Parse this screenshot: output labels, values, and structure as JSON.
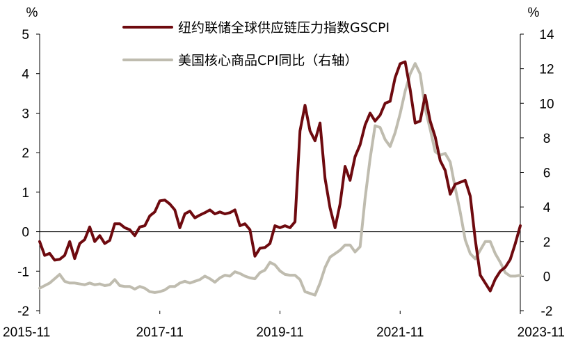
{
  "chart_data": {
    "type": "line",
    "title": "",
    "xlabel": "",
    "left_axis": {
      "unit": "%",
      "ylim": [
        -2,
        5
      ],
      "ticks": [
        -2,
        -1,
        0,
        1,
        2,
        3,
        4,
        5
      ]
    },
    "right_axis": {
      "unit": "%",
      "ylim": [
        -2,
        14
      ],
      "ticks": [
        -2,
        0,
        2,
        4,
        6,
        8,
        10,
        12,
        14
      ]
    },
    "x_ticks": [
      "2015-11",
      "2017-11",
      "2019-11",
      "2021-11",
      "2023-11"
    ],
    "grid": false,
    "legend_position": "top-center",
    "series": [
      {
        "name": "纽约联储全球供应链压力指数GSCPI",
        "axis": "left",
        "color": "#6e0a0f",
        "points": [
          [
            "2015-11",
            -0.25
          ],
          [
            "2015-12",
            -0.6
          ],
          [
            "2016-01",
            -0.55
          ],
          [
            "2016-02",
            -0.72
          ],
          [
            "2016-03",
            -0.7
          ],
          [
            "2016-04",
            -0.6
          ],
          [
            "2016-05",
            -0.25
          ],
          [
            "2016-06",
            -0.68
          ],
          [
            "2016-07",
            -0.3
          ],
          [
            "2016-08",
            -0.2
          ],
          [
            "2016-09",
            0.12
          ],
          [
            "2016-10",
            -0.25
          ],
          [
            "2016-11",
            -0.1
          ],
          [
            "2016-12",
            -0.3
          ],
          [
            "2017-01",
            -0.22
          ],
          [
            "2017-02",
            0.2
          ],
          [
            "2017-03",
            0.2
          ],
          [
            "2017-04",
            0.1
          ],
          [
            "2017-05",
            0.05
          ],
          [
            "2017-06",
            -0.1
          ],
          [
            "2017-07",
            0.12
          ],
          [
            "2017-08",
            0.15
          ],
          [
            "2017-09",
            0.4
          ],
          [
            "2017-10",
            0.5
          ],
          [
            "2017-11",
            0.78
          ],
          [
            "2017-12",
            0.8
          ],
          [
            "2018-01",
            0.7
          ],
          [
            "2018-02",
            0.55
          ],
          [
            "2018-03",
            0.1
          ],
          [
            "2018-04",
            0.45
          ],
          [
            "2018-05",
            0.52
          ],
          [
            "2018-06",
            0.35
          ],
          [
            "2018-07",
            0.42
          ],
          [
            "2018-08",
            0.48
          ],
          [
            "2018-09",
            0.55
          ],
          [
            "2018-10",
            0.45
          ],
          [
            "2018-11",
            0.5
          ],
          [
            "2018-12",
            0.45
          ],
          [
            "2019-01",
            0.48
          ],
          [
            "2019-02",
            0.55
          ],
          [
            "2019-03",
            0.15
          ],
          [
            "2019-04",
            0.2
          ],
          [
            "2019-05",
            0.05
          ],
          [
            "2019-06",
            -0.62
          ],
          [
            "2019-07",
            -0.42
          ],
          [
            "2019-08",
            -0.4
          ],
          [
            "2019-09",
            -0.3
          ],
          [
            "2019-10",
            0.15
          ],
          [
            "2019-11",
            0.1
          ],
          [
            "2019-12",
            0.15
          ],
          [
            "2020-01",
            0.1
          ],
          [
            "2020-02",
            0.25
          ],
          [
            "2020-03",
            2.55
          ],
          [
            "2020-04",
            3.2
          ],
          [
            "2020-05",
            2.55
          ],
          [
            "2020-06",
            2.3
          ],
          [
            "2020-07",
            2.75
          ],
          [
            "2020-08",
            1.35
          ],
          [
            "2020-09",
            0.6
          ],
          [
            "2020-10",
            0.1
          ],
          [
            "2020-11",
            0.7
          ],
          [
            "2020-12",
            1.65
          ],
          [
            "2021-01",
            1.3
          ],
          [
            "2021-02",
            1.9
          ],
          [
            "2021-03",
            2.2
          ],
          [
            "2021-04",
            2.7
          ],
          [
            "2021-05",
            3.0
          ],
          [
            "2021-06",
            2.8
          ],
          [
            "2021-07",
            2.95
          ],
          [
            "2021-08",
            3.25
          ],
          [
            "2021-09",
            3.3
          ],
          [
            "2021-10",
            3.9
          ],
          [
            "2021-11",
            4.25
          ],
          [
            "2021-12",
            4.3
          ],
          [
            "2022-01",
            3.6
          ],
          [
            "2022-02",
            2.75
          ],
          [
            "2022-03",
            2.8
          ],
          [
            "2022-04",
            3.45
          ],
          [
            "2022-05",
            2.8
          ],
          [
            "2022-06",
            2.4
          ],
          [
            "2022-07",
            1.8
          ],
          [
            "2022-08",
            1.55
          ],
          [
            "2022-09",
            0.95
          ],
          [
            "2022-10",
            1.2
          ],
          [
            "2022-11",
            1.25
          ],
          [
            "2022-12",
            1.3
          ],
          [
            "2023-01",
            0.9
          ],
          [
            "2023-02",
            -0.2
          ],
          [
            "2023-03",
            -1.1
          ],
          [
            "2023-04",
            -1.3
          ],
          [
            "2023-05",
            -1.5
          ],
          [
            "2023-06",
            -1.2
          ],
          [
            "2023-07",
            -1.0
          ],
          [
            "2023-08",
            -0.9
          ],
          [
            "2023-09",
            -0.7
          ],
          [
            "2023-10",
            -0.3
          ],
          [
            "2023-11",
            0.15
          ]
        ]
      },
      {
        "name": "美国核心商品CPI同比（右轴）",
        "axis": "right",
        "color": "#bfbcaf",
        "points": [
          [
            "2015-11",
            -0.7
          ],
          [
            "2015-12",
            -0.55
          ],
          [
            "2016-01",
            -0.4
          ],
          [
            "2016-02",
            -0.15
          ],
          [
            "2016-03",
            0.1
          ],
          [
            "2016-04",
            -0.3
          ],
          [
            "2016-05",
            -0.4
          ],
          [
            "2016-06",
            -0.4
          ],
          [
            "2016-07",
            -0.45
          ],
          [
            "2016-08",
            -0.5
          ],
          [
            "2016-09",
            -0.4
          ],
          [
            "2016-10",
            -0.5
          ],
          [
            "2016-11",
            -0.45
          ],
          [
            "2016-12",
            -0.55
          ],
          [
            "2017-01",
            -0.5
          ],
          [
            "2017-02",
            -0.2
          ],
          [
            "2017-03",
            -0.55
          ],
          [
            "2017-04",
            -0.6
          ],
          [
            "2017-05",
            -0.6
          ],
          [
            "2017-06",
            -0.75
          ],
          [
            "2017-07",
            -0.6
          ],
          [
            "2017-08",
            -0.7
          ],
          [
            "2017-09",
            -0.9
          ],
          [
            "2017-10",
            -0.95
          ],
          [
            "2017-11",
            -0.9
          ],
          [
            "2017-12",
            -0.8
          ],
          [
            "2018-01",
            -0.6
          ],
          [
            "2018-02",
            -0.6
          ],
          [
            "2018-03",
            -0.4
          ],
          [
            "2018-04",
            -0.3
          ],
          [
            "2018-05",
            -0.4
          ],
          [
            "2018-06",
            -0.3
          ],
          [
            "2018-07",
            -0.2
          ],
          [
            "2018-08",
            0.0
          ],
          [
            "2018-09",
            -0.15
          ],
          [
            "2018-10",
            -0.35
          ],
          [
            "2018-11",
            -0.1
          ],
          [
            "2018-12",
            0.05
          ],
          [
            "2019-01",
            0.0
          ],
          [
            "2019-02",
            0.25
          ],
          [
            "2019-03",
            0.15
          ],
          [
            "2019-04",
            0.0
          ],
          [
            "2019-05",
            -0.1
          ],
          [
            "2019-06",
            -0.15
          ],
          [
            "2019-07",
            0.2
          ],
          [
            "2019-08",
            0.35
          ],
          [
            "2019-09",
            0.8
          ],
          [
            "2019-10",
            0.65
          ],
          [
            "2019-11",
            0.3
          ],
          [
            "2019-12",
            0.1
          ],
          [
            "2020-01",
            0.05
          ],
          [
            "2020-02",
            0.05
          ],
          [
            "2020-03",
            -0.2
          ],
          [
            "2020-04",
            -0.9
          ],
          [
            "2020-05",
            -1.0
          ],
          [
            "2020-06",
            -1.1
          ],
          [
            "2020-07",
            -0.4
          ],
          [
            "2020-08",
            0.5
          ],
          [
            "2020-09",
            1.1
          ],
          [
            "2020-10",
            1.3
          ],
          [
            "2020-11",
            1.5
          ],
          [
            "2020-12",
            1.8
          ],
          [
            "2021-01",
            1.8
          ],
          [
            "2021-02",
            1.4
          ],
          [
            "2021-03",
            1.7
          ],
          [
            "2021-04",
            4.5
          ],
          [
            "2021-05",
            6.8
          ],
          [
            "2021-06",
            8.7
          ],
          [
            "2021-07",
            8.6
          ],
          [
            "2021-08",
            7.9
          ],
          [
            "2021-09",
            7.5
          ],
          [
            "2021-10",
            8.3
          ],
          [
            "2021-11",
            9.4
          ],
          [
            "2021-12",
            10.7
          ],
          [
            "2022-01",
            11.7
          ],
          [
            "2022-02",
            12.3
          ],
          [
            "2022-03",
            11.7
          ],
          [
            "2022-04",
            9.7
          ],
          [
            "2022-05",
            8.5
          ],
          [
            "2022-06",
            7.2
          ],
          [
            "2022-07",
            7.0
          ],
          [
            "2022-08",
            7.1
          ],
          [
            "2022-09",
            6.6
          ],
          [
            "2022-10",
            5.1
          ],
          [
            "2022-11",
            3.7
          ],
          [
            "2022-12",
            2.1
          ],
          [
            "2023-01",
            1.3
          ],
          [
            "2023-02",
            1.0
          ],
          [
            "2023-03",
            1.5
          ],
          [
            "2023-04",
            2.0
          ],
          [
            "2023-05",
            2.0
          ],
          [
            "2023-06",
            1.3
          ],
          [
            "2023-07",
            0.8
          ],
          [
            "2023-08",
            0.2
          ],
          [
            "2023-09",
            0.0
          ],
          [
            "2023-10",
            0.0
          ],
          [
            "2023-11",
            0.05
          ]
        ]
      }
    ]
  }
}
